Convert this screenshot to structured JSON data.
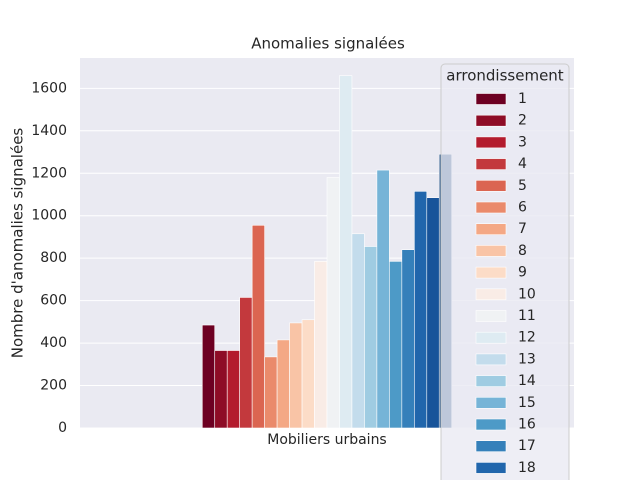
{
  "chart_data": {
    "type": "bar",
    "title": "Anomalies signalées",
    "ylabel": "Nombre d'anomalies signalées",
    "categories": [
      "Mobiliers urbains"
    ],
    "legend_title": "arrondissement",
    "legend": "upper right",
    "ylim": [
      0,
      1743
    ],
    "yticks": [
      0,
      200,
      400,
      600,
      800,
      1000,
      1200,
      1400,
      1600
    ],
    "grid": true,
    "series": [
      {
        "name": "1",
        "color": "#6d0022",
        "values": [
          485
        ]
      },
      {
        "name": "2",
        "color": "#8e0c26",
        "values": [
          365
        ]
      },
      {
        "name": "3",
        "color": "#b31b2d",
        "values": [
          365
        ]
      },
      {
        "name": "4",
        "color": "#c3393d",
        "values": [
          615
        ]
      },
      {
        "name": "5",
        "color": "#db6551",
        "values": [
          955
        ]
      },
      {
        "name": "6",
        "color": "#ea8a6b",
        "values": [
          335
        ]
      },
      {
        "name": "7",
        "color": "#f4a885",
        "values": [
          415
        ]
      },
      {
        "name": "8",
        "color": "#f9c4a6",
        "values": [
          495
        ]
      },
      {
        "name": "9",
        "color": "#fcdcc7",
        "values": [
          510
        ]
      },
      {
        "name": "10",
        "color": "#f9ece6",
        "values": [
          785
        ]
      },
      {
        "name": "11",
        "color": "#f0f2f4",
        "values": [
          1180
        ]
      },
      {
        "name": "12",
        "color": "#deebf2",
        "values": [
          1660
        ]
      },
      {
        "name": "13",
        "color": "#c3dcec",
        "values": [
          915
        ]
      },
      {
        "name": "14",
        "color": "#9fcce2",
        "values": [
          855
        ]
      },
      {
        "name": "15",
        "color": "#76b4d7",
        "values": [
          1215
        ]
      },
      {
        "name": "16",
        "color": "#4d9ac7",
        "values": [
          785
        ]
      },
      {
        "name": "17",
        "color": "#3580ba",
        "values": [
          840
        ]
      },
      {
        "name": "18",
        "color": "#2166ac",
        "values": [
          1115
        ]
      },
      {
        "name": null,
        "color": "#18549a",
        "values": [
          1085
        ]
      },
      {
        "name": null,
        "color": "#0d3f7a",
        "values": [
          1290
        ]
      }
    ]
  }
}
